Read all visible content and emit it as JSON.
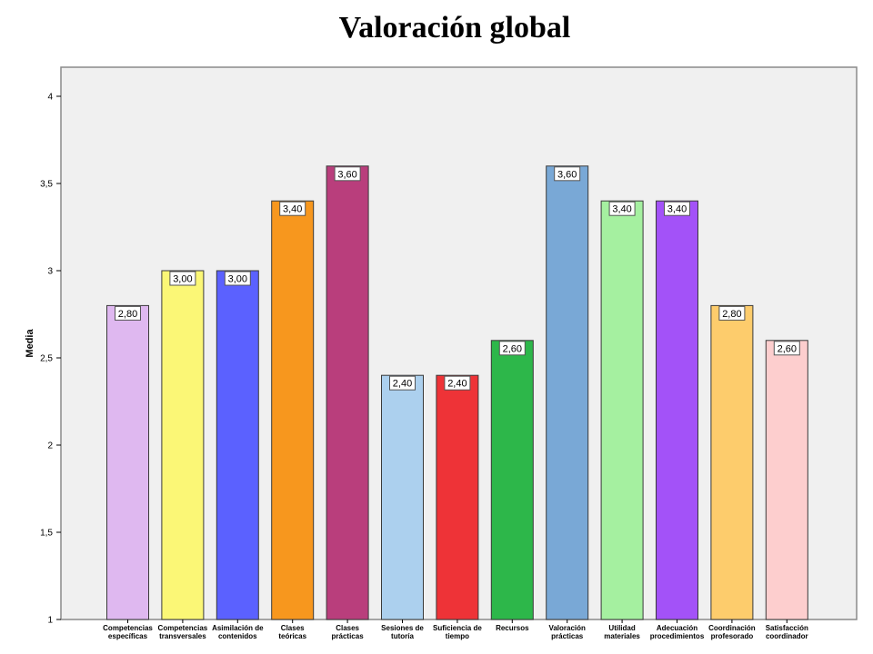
{
  "chart_data": {
    "type": "bar",
    "title": "Valoración global",
    "xlabel": "",
    "ylabel": "Media",
    "ylim": [
      1,
      4
    ],
    "yticks": [
      "1",
      "1,5",
      "2",
      "2,5",
      "3",
      "3,5",
      "4"
    ],
    "ytick_values": [
      1,
      1.5,
      2,
      2.5,
      3,
      3.5,
      4
    ],
    "grid": false,
    "categories": [
      [
        "Competencias",
        "específicas"
      ],
      [
        "Competencias",
        "transversales"
      ],
      [
        "Asimilación de",
        "contenidos"
      ],
      [
        "Clases",
        "teóricas"
      ],
      [
        "Clases",
        "prácticas"
      ],
      [
        "Sesiones de",
        "tutoría"
      ],
      [
        "Suficiencia de",
        "tiempo"
      ],
      [
        "Recursos"
      ],
      [
        "Valoración",
        "prácticas"
      ],
      [
        "Utilidad",
        "materiales"
      ],
      [
        "Adecuación",
        "procedimientos"
      ],
      [
        "Coordinación",
        "profesorado"
      ],
      [
        "Satisfacción",
        "coordinador"
      ]
    ],
    "values": [
      2.8,
      3.0,
      3.0,
      3.4,
      3.6,
      2.4,
      2.4,
      2.6,
      3.6,
      3.4,
      3.4,
      2.8,
      2.6
    ],
    "value_labels": [
      "2,80",
      "3,00",
      "3,00",
      "3,40",
      "3,60",
      "2,40",
      "2,40",
      "2,60",
      "3,60",
      "3,40",
      "3,40",
      "2,80",
      "2,60"
    ],
    "colors": [
      "#dfb8f0",
      "#fbf776",
      "#5b61ff",
      "#f7971e",
      "#b93e7c",
      "#acd0ee",
      "#ee3337",
      "#2db74a",
      "#79a8d6",
      "#a5f0a0",
      "#a352f8",
      "#fdcc6c",
      "#fdcece"
    ],
    "frame_color": "#f0f0f0"
  }
}
